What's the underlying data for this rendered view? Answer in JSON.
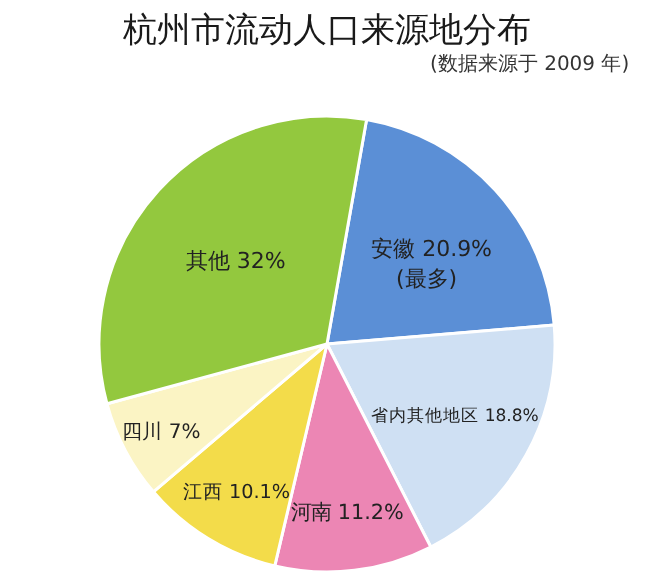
{
  "chart_data": {
    "type": "pie",
    "title": "杭州市流动人口来源地分布",
    "subtitle": "(数据来源于 2009 年)",
    "categories": [
      "安徽",
      "省内其他地区",
      "河南",
      "江西",
      "四川",
      "其他"
    ],
    "values": [
      20.9,
      18.8,
      11.2,
      10.1,
      7,
      32
    ],
    "value_labels": [
      "20.9%",
      "18.8%",
      "11.2%",
      "10.1%",
      "7%",
      "32%"
    ],
    "colors": [
      "#5b8fd6",
      "#cfe0f3",
      "#ec86b4",
      "#f3dc4a",
      "#fbf4c4",
      "#93c83e"
    ],
    "annotations": [
      "(最多)"
    ],
    "legend": false
  }
}
